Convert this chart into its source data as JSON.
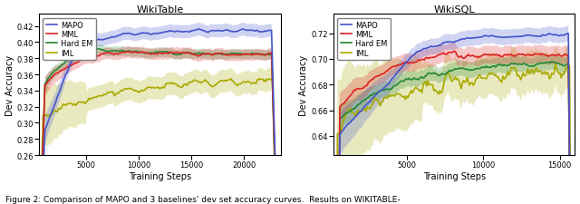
{
  "wikitable": {
    "title": "WikiTable",
    "xlabel": "Training Steps",
    "ylabel": "Dev Accuracy",
    "xlim": [
      500,
      23500
    ],
    "ylim": [
      0.26,
      0.435
    ],
    "yticks": [
      0.26,
      0.28,
      0.3,
      0.32,
      0.34,
      0.36,
      0.38,
      0.4,
      0.42
    ],
    "xticks": [
      5000,
      10000,
      15000,
      20000
    ],
    "colors": {
      "MAPO": "#4455cc",
      "MML": "#dd2222",
      "Hard EM": "#228833",
      "IML": "#aaaa00"
    }
  },
  "wikisql": {
    "title": "WikiSQL",
    "xlabel": "Training Steps",
    "ylabel": "Dev Accuracy",
    "xlim": [
      200,
      16000
    ],
    "ylim": [
      0.625,
      0.735
    ],
    "yticks": [
      0.64,
      0.66,
      0.68,
      0.7,
      0.72
    ],
    "xticks": [
      5000,
      10000,
      15000
    ],
    "colors": {
      "MAPO": "#4455cc",
      "MML": "#dd2222",
      "Hard EM": "#228833",
      "IML": "#aaaa00"
    }
  },
  "legend_labels": [
    "MAPO",
    "MML",
    "Hard EM",
    "IML"
  ],
  "figure_caption": "Figure 2: Comparison of MAPO and 3 baselines' dev set accuracy curves.  Results on WIKITABLE-"
}
